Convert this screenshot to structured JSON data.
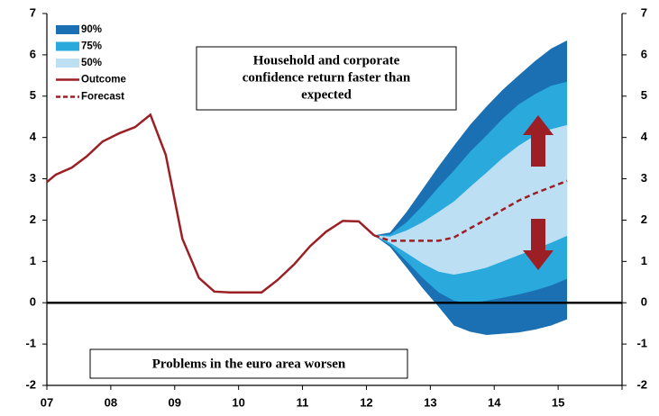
{
  "chart_data": {
    "type": "fan",
    "annotations": [
      {
        "lines": [
          "Household and corporate",
          "confidence return faster than",
          "expected"
        ]
      },
      {
        "lines": [
          "Problems in the euro area worsen"
        ]
      }
    ],
    "xlim": [
      7,
      16
    ],
    "xticks": [
      {
        "value": 7,
        "label": "07"
      },
      {
        "value": 8,
        "label": "08"
      },
      {
        "value": 9,
        "label": "09"
      },
      {
        "value": 10,
        "label": "10"
      },
      {
        "value": 11,
        "label": "11"
      },
      {
        "value": 12,
        "label": "12"
      },
      {
        "value": 13,
        "label": "13"
      },
      {
        "value": 14,
        "label": "14"
      },
      {
        "value": 15,
        "label": "15"
      },
      16
    ],
    "ylim": [
      -2,
      7
    ],
    "yticks": [
      -2,
      -1,
      0,
      1,
      2,
      3,
      4,
      5,
      6,
      7
    ],
    "y2lim": [
      -2,
      7
    ],
    "y2ticks": [
      -2,
      -1,
      0,
      1,
      2,
      3,
      4,
      5,
      6,
      7
    ],
    "bands": [
      {
        "name": "90%",
        "color": "#1a70b3",
        "x": [
          12.12,
          12.37,
          12.63,
          12.88,
          13.13,
          13.37,
          13.62,
          13.88,
          14.13,
          14.38,
          14.64,
          14.89,
          15.14
        ],
        "low": [
          1.63,
          1.35,
          0.85,
          0.35,
          -0.1,
          -0.55,
          -0.7,
          -0.78,
          -0.75,
          -0.72,
          -0.65,
          -0.55,
          -0.4
        ],
        "high": [
          1.63,
          1.7,
          2.2,
          2.75,
          3.3,
          3.8,
          4.3,
          4.75,
          5.15,
          5.5,
          5.85,
          6.15,
          6.35
        ]
      },
      {
        "name": "75%",
        "color": "#2aa9dd",
        "x": [
          12.12,
          12.37,
          12.63,
          12.88,
          13.13,
          13.37,
          13.62,
          13.88,
          14.13,
          14.38,
          14.64,
          14.89,
          15.14
        ],
        "low": [
          1.63,
          1.4,
          1.0,
          0.6,
          0.25,
          0.05,
          -0.02,
          0.05,
          0.12,
          0.2,
          0.3,
          0.42,
          0.58
        ],
        "high": [
          1.63,
          1.65,
          1.95,
          2.35,
          2.8,
          3.2,
          3.65,
          4.05,
          4.45,
          4.8,
          5.05,
          5.25,
          5.35
        ]
      },
      {
        "name": "50%",
        "color": "#bcdff4",
        "x": [
          12.12,
          12.37,
          12.63,
          12.88,
          13.13,
          13.37,
          13.62,
          13.88,
          14.13,
          14.38,
          14.64,
          14.89,
          15.14
        ],
        "low": [
          1.63,
          1.45,
          1.2,
          0.95,
          0.75,
          0.68,
          0.75,
          0.85,
          1.0,
          1.15,
          1.3,
          1.45,
          1.62
        ],
        "high": [
          1.63,
          1.6,
          1.75,
          1.95,
          2.2,
          2.45,
          2.8,
          3.15,
          3.5,
          3.8,
          4.05,
          4.2,
          4.3
        ]
      }
    ],
    "series": [
      {
        "name": "Outcome",
        "color": "#9b1f24",
        "dashed": false,
        "x": [
          7.0,
          7.14,
          7.39,
          7.63,
          7.87,
          8.13,
          8.38,
          8.62,
          8.86,
          9.12,
          9.38,
          9.62,
          9.87,
          10.11,
          10.36,
          10.61,
          10.87,
          11.12,
          11.37,
          11.63,
          11.88,
          12.12
        ],
        "values": [
          2.92,
          3.1,
          3.27,
          3.55,
          3.9,
          4.1,
          4.25,
          4.55,
          3.58,
          1.55,
          0.6,
          0.27,
          0.25,
          0.25,
          0.25,
          0.55,
          0.93,
          1.37,
          1.72,
          1.98,
          1.97,
          1.63
        ]
      },
      {
        "name": "Forecast",
        "color": "#9b1f24",
        "dashed": true,
        "x": [
          12.12,
          12.37,
          12.63,
          12.88,
          13.13,
          13.37,
          13.62,
          13.88,
          14.13,
          14.38,
          14.64,
          14.89,
          15.14
        ],
        "values": [
          1.63,
          1.5,
          1.5,
          1.5,
          1.5,
          1.58,
          1.8,
          2.02,
          2.25,
          2.47,
          2.65,
          2.8,
          2.95
        ]
      }
    ]
  }
}
